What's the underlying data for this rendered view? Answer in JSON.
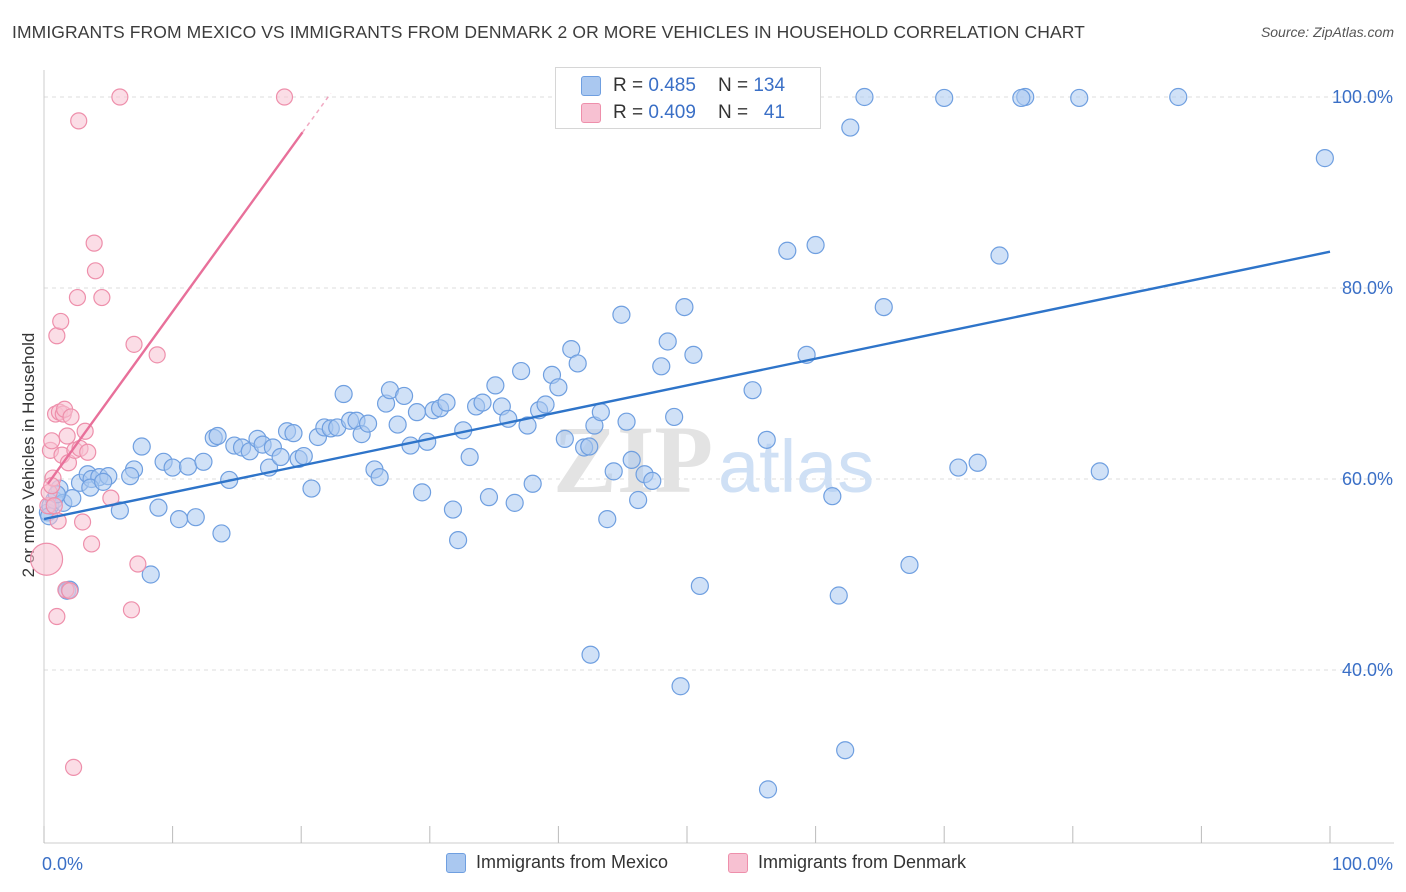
{
  "title": "IMMIGRANTS FROM MEXICO VS IMMIGRANTS FROM DENMARK 2 OR MORE VEHICLES IN HOUSEHOLD CORRELATION CHART",
  "source": "Source: ZipAtlas.com",
  "watermark": {
    "zip": "ZIP",
    "atlas": "atlas"
  },
  "colors": {
    "mexico": "#6f9fe0",
    "mexico_fill": "#aac8f0",
    "mexico_line": "#2e74c9",
    "denmark": "#ee8fab",
    "denmark_fill": "#f7c1d2",
    "denmark_line": "#e8709a",
    "axis_label": "#3a6fc6",
    "grid": "#dddddd"
  },
  "legend_top": {
    "rows": [
      {
        "r_label": "R =",
        "r_value": "0.485",
        "n_label": "N =",
        "n_value": "134"
      },
      {
        "r_label": "R =",
        "r_value": "0.409",
        "n_label": "N =",
        "n_value": "41"
      }
    ]
  },
  "legend_bottom": [
    "Immigrants from Mexico",
    "Immigrants from Denmark"
  ],
  "chart_data": {
    "type": "scatter",
    "ylabel": "2 or more Vehicles in Household",
    "xlabel": "",
    "xlim": [
      0,
      100
    ],
    "ylim": [
      20,
      101
    ],
    "x_tick_labels": [
      "0.0%",
      "100.0%"
    ],
    "y_ticks": [
      40,
      60,
      80,
      100
    ],
    "y_tick_labels": [
      "40.0%",
      "60.0%",
      "80.0%",
      "100.0%"
    ],
    "grid": "horizontal dashed",
    "legend_placement": "top-center",
    "series": [
      {
        "name": "Immigrants from Mexico",
        "trend": {
          "x": [
            0,
            100
          ],
          "y": [
            55.8,
            83.8
          ]
        },
        "points": [
          [
            0.3,
            56.5
          ],
          [
            0.5,
            57.2
          ],
          [
            0.8,
            57.8
          ],
          [
            1.2,
            59.0
          ],
          [
            1.5,
            57.5
          ],
          [
            1.8,
            48.3
          ],
          [
            2.2,
            58.0
          ],
          [
            2.8,
            59.6
          ],
          [
            3.4,
            60.5
          ],
          [
            3.7,
            60.0
          ],
          [
            4.3,
            60.2
          ],
          [
            5.0,
            60.3
          ],
          [
            5.9,
            56.7
          ],
          [
            7.0,
            61.0
          ],
          [
            7.6,
            63.4
          ],
          [
            8.3,
            50.0
          ],
          [
            8.9,
            57.0
          ],
          [
            9.3,
            61.8
          ],
          [
            10.0,
            61.2
          ],
          [
            10.5,
            55.8
          ],
          [
            11.2,
            61.3
          ],
          [
            11.8,
            56.0
          ],
          [
            12.4,
            61.8
          ],
          [
            13.2,
            64.3
          ],
          [
            13.5,
            64.5
          ],
          [
            13.8,
            54.3
          ],
          [
            14.4,
            59.9
          ],
          [
            14.8,
            63.5
          ],
          [
            15.4,
            63.3
          ],
          [
            16.0,
            62.9
          ],
          [
            16.6,
            64.2
          ],
          [
            17.0,
            63.6
          ],
          [
            17.5,
            61.2
          ],
          [
            17.8,
            63.3
          ],
          [
            18.4,
            62.3
          ],
          [
            18.9,
            65.0
          ],
          [
            19.4,
            64.8
          ],
          [
            19.8,
            62.1
          ],
          [
            20.2,
            62.4
          ],
          [
            20.8,
            59.0
          ],
          [
            21.3,
            64.4
          ],
          [
            21.8,
            65.4
          ],
          [
            22.3,
            65.3
          ],
          [
            22.8,
            65.4
          ],
          [
            23.3,
            68.9
          ],
          [
            23.8,
            66.1
          ],
          [
            24.3,
            66.1
          ],
          [
            24.7,
            64.7
          ],
          [
            25.2,
            65.8
          ],
          [
            25.7,
            61.0
          ],
          [
            26.1,
            60.2
          ],
          [
            26.6,
            67.9
          ],
          [
            26.9,
            69.3
          ],
          [
            27.5,
            65.7
          ],
          [
            28.0,
            68.7
          ],
          [
            28.5,
            63.5
          ],
          [
            29.0,
            67.0
          ],
          [
            29.4,
            58.6
          ],
          [
            29.8,
            63.9
          ],
          [
            30.3,
            67.2
          ],
          [
            30.8,
            67.4
          ],
          [
            31.3,
            68.0
          ],
          [
            31.8,
            56.8
          ],
          [
            32.2,
            53.6
          ],
          [
            32.6,
            65.1
          ],
          [
            33.1,
            62.3
          ],
          [
            33.6,
            67.6
          ],
          [
            34.1,
            68.0
          ],
          [
            34.6,
            58.1
          ],
          [
            35.1,
            69.8
          ],
          [
            35.6,
            67.6
          ],
          [
            36.1,
            66.3
          ],
          [
            36.6,
            57.5
          ],
          [
            37.1,
            71.3
          ],
          [
            37.6,
            65.6
          ],
          [
            38.0,
            59.5
          ],
          [
            38.5,
            67.2
          ],
          [
            39.0,
            67.8
          ],
          [
            39.5,
            70.9
          ],
          [
            40.0,
            69.6
          ],
          [
            40.5,
            64.2
          ],
          [
            41.0,
            73.6
          ],
          [
            41.5,
            72.1
          ],
          [
            42.0,
            63.3
          ],
          [
            42.4,
            63.4
          ],
          [
            42.8,
            65.6
          ],
          [
            43.3,
            67.0
          ],
          [
            43.8,
            55.8
          ],
          [
            44.3,
            60.8
          ],
          [
            44.9,
            77.2
          ],
          [
            45.3,
            66.0
          ],
          [
            45.7,
            62.0
          ],
          [
            46.2,
            57.8
          ],
          [
            46.7,
            60.5
          ],
          [
            47.3,
            59.8
          ],
          [
            48.0,
            71.8
          ],
          [
            48.5,
            74.4
          ],
          [
            49.0,
            66.5
          ],
          [
            49.8,
            78.0
          ],
          [
            50.5,
            73.0
          ],
          [
            51.0,
            48.8
          ],
          [
            55.1,
            69.3
          ],
          [
            56.2,
            64.1
          ],
          [
            57.8,
            83.9
          ],
          [
            59.3,
            73.0
          ],
          [
            60.0,
            84.5
          ],
          [
            61.3,
            58.2
          ],
          [
            61.8,
            47.8
          ],
          [
            62.7,
            96.8
          ],
          [
            65.3,
            78.0
          ],
          [
            67.3,
            51.0
          ],
          [
            70.0,
            99.9
          ],
          [
            71.1,
            61.2
          ],
          [
            72.6,
            61.7
          ],
          [
            74.3,
            83.4
          ],
          [
            76.3,
            100.0
          ],
          [
            80.5,
            99.9
          ],
          [
            82.1,
            60.8
          ],
          [
            88.2,
            100.0
          ],
          [
            99.6,
            93.6
          ],
          [
            50.0,
            100.0
          ],
          [
            63.8,
            100.0
          ],
          [
            76.0,
            99.9
          ],
          [
            59.3,
            99.9
          ],
          [
            42.5,
            41.6
          ],
          [
            49.5,
            38.3
          ],
          [
            56.3,
            27.5
          ],
          [
            62.3,
            31.6
          ],
          [
            0.4,
            56.1
          ],
          [
            1.0,
            58.4
          ],
          [
            2.0,
            48.4
          ],
          [
            6.7,
            60.3
          ],
          [
            3.6,
            59.1
          ],
          [
            4.6,
            59.7
          ]
        ]
      },
      {
        "name": "Immigrants from Denmark",
        "trend": {
          "x": [
            0.3,
            20.1
          ],
          "y": [
            59.5,
            96.3
          ]
        },
        "points": [
          [
            0.2,
            51.6
          ],
          [
            0.3,
            57.2
          ],
          [
            0.4,
            58.6
          ],
          [
            0.5,
            63.0
          ],
          [
            0.6,
            64.0
          ],
          [
            0.7,
            60.1
          ],
          [
            0.8,
            57.2
          ],
          [
            0.9,
            66.8
          ],
          [
            1.0,
            75.0
          ],
          [
            1.1,
            55.6
          ],
          [
            1.2,
            67.0
          ],
          [
            1.3,
            76.5
          ],
          [
            1.4,
            62.5
          ],
          [
            1.5,
            66.8
          ],
          [
            1.6,
            67.3
          ],
          [
            1.7,
            48.4
          ],
          [
            1.8,
            64.5
          ],
          [
            1.9,
            61.7
          ],
          [
            2.0,
            48.3
          ],
          [
            2.1,
            66.5
          ],
          [
            2.3,
            29.8
          ],
          [
            2.4,
            63.0
          ],
          [
            2.6,
            79.0
          ],
          [
            2.7,
            97.5
          ],
          [
            2.8,
            63.2
          ],
          [
            3.0,
            55.5
          ],
          [
            3.2,
            65.0
          ],
          [
            3.4,
            62.8
          ],
          [
            3.7,
            53.2
          ],
          [
            3.9,
            84.7
          ],
          [
            4.0,
            81.8
          ],
          [
            4.5,
            79.0
          ],
          [
            5.2,
            58.0
          ],
          [
            5.9,
            100.0
          ],
          [
            6.8,
            46.3
          ],
          [
            7.0,
            74.1
          ],
          [
            7.3,
            51.1
          ],
          [
            8.8,
            73.0
          ],
          [
            18.7,
            100.0
          ],
          [
            0.6,
            59.3
          ],
          [
            1.0,
            45.6
          ]
        ]
      }
    ]
  }
}
